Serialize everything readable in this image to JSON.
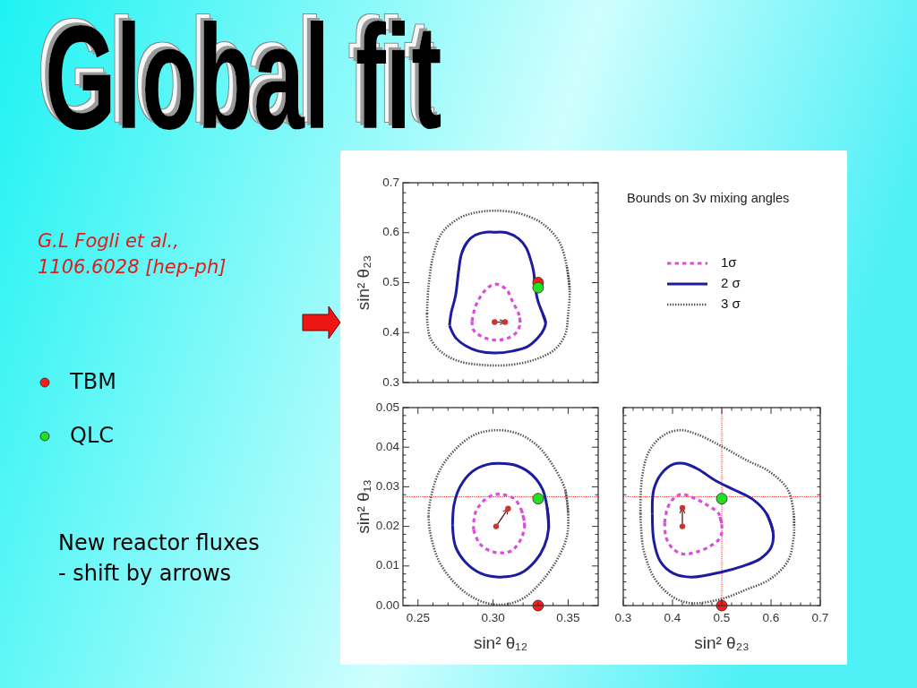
{
  "chart_data": [
    {
      "type": "other",
      "title": "Global fit",
      "annotations": [
        "G.L Fogli et al.,\n1106.6028 [hep-ph]"
      ]
    },
    {
      "type": "line",
      "legend": "right",
      "legend_title": "Bounds on 3ν mixing angles",
      "ylabel": "sin² θ₂₃",
      "tick_labels": "y",
      "xlim": [
        0.24,
        0.37
      ],
      "ylim": [
        0.3,
        0.7
      ],
      "xticks": [
        {
          "value": 0.25,
          "label": null
        },
        {
          "value": 0.26,
          "label": null
        },
        {
          "value": 0.27,
          "label": null
        },
        {
          "value": 0.28,
          "label": null
        },
        {
          "value": 0.29,
          "label": null
        },
        {
          "value": 0.3,
          "label": null
        },
        {
          "value": 0.31,
          "label": null
        },
        {
          "value": 0.32,
          "label": null
        },
        {
          "value": 0.33,
          "label": null
        },
        {
          "value": 0.34,
          "label": null
        },
        {
          "value": 0.35,
          "label": null
        },
        {
          "value": 0.36,
          "label": null
        }
      ],
      "yticks": [
        0.3,
        {
          "value": 0.32,
          "label": null
        },
        {
          "value": 0.34,
          "label": null
        },
        {
          "value": 0.36,
          "label": null
        },
        {
          "value": 0.38,
          "label": null
        },
        0.4,
        {
          "value": 0.42,
          "label": null
        },
        {
          "value": 0.44,
          "label": null
        },
        {
          "value": 0.46,
          "label": null
        },
        {
          "value": 0.48,
          "label": null
        },
        0.5,
        {
          "value": 0.52,
          "label": null
        },
        {
          "value": 0.54,
          "label": null
        },
        {
          "value": 0.56,
          "label": null
        },
        {
          "value": 0.58,
          "label": null
        },
        0.6,
        {
          "value": 0.62,
          "label": null
        },
        {
          "value": 0.64,
          "label": null
        },
        {
          "value": 0.66,
          "label": null
        },
        {
          "value": 0.68,
          "label": null
        },
        0.7
      ],
      "series": [
        {
          "name": "1σ",
          "color": "#d94fd9",
          "line_style": "dashed",
          "x": [
            0.286,
            0.288,
            0.292,
            0.297,
            0.302,
            0.309,
            0.313,
            0.317,
            0.318
          ],
          "values": [
            0.423,
            0.45,
            0.474,
            0.491,
            0.497,
            0.486,
            0.462,
            0.438,
            0.42
          ]
        },
        {
          "color": "#d94fd9",
          "line_style": "dashed",
          "x": [
            0.286,
            0.287,
            0.294,
            0.302,
            0.31,
            0.316,
            0.318,
            0.317
          ],
          "values": [
            0.423,
            0.405,
            0.39,
            0.385,
            0.389,
            0.402,
            0.42,
            0.438
          ]
        },
        {
          "name": "2 σ",
          "color": "#1c1ca0",
          "line_style": "solid",
          "x": [
            0.271,
            0.272,
            0.275,
            0.277,
            0.279,
            0.283,
            0.288,
            0.295,
            0.3,
            0.309,
            0.317,
            0.322,
            0.325,
            0.327,
            0.328,
            0.33,
            0.333,
            0.335
          ],
          "values": [
            0.414,
            0.438,
            0.474,
            0.522,
            0.558,
            0.582,
            0.595,
            0.601,
            0.601,
            0.6,
            0.588,
            0.57,
            0.546,
            0.522,
            0.492,
            0.462,
            0.438,
            0.42
          ]
        },
        {
          "color": "#1c1ca0",
          "line_style": "solid",
          "x": [
            0.271,
            0.275,
            0.282,
            0.29,
            0.301,
            0.313,
            0.323,
            0.33,
            0.334,
            0.335,
            0.333
          ],
          "values": [
            0.414,
            0.39,
            0.373,
            0.363,
            0.359,
            0.363,
            0.372,
            0.39,
            0.408,
            0.42,
            0.438
          ]
        },
        {
          "name": "3 σ",
          "color": "#505050",
          "line_style": "dotted",
          "x": [
            0.256,
            0.257,
            0.26,
            0.266,
            0.278,
            0.288,
            0.3,
            0.317,
            0.333,
            0.344,
            0.349,
            0.351
          ],
          "values": [
            0.438,
            0.492,
            0.552,
            0.6,
            0.63,
            0.64,
            0.644,
            0.639,
            0.618,
            0.582,
            0.534,
            0.486
          ]
        },
        {
          "color": "#505050",
          "line_style": "dotted",
          "x": [
            0.256,
            0.258,
            0.266,
            0.278,
            0.294,
            0.31,
            0.327,
            0.341,
            0.348,
            0.35,
            0.351,
            0.349
          ],
          "values": [
            0.438,
            0.39,
            0.36,
            0.342,
            0.335,
            0.335,
            0.345,
            0.366,
            0.396,
            0.438,
            0.486,
            0.534
          ]
        },
        {
          "type": "line",
          "color": "#cc3333",
          "marker": "circle",
          "x": [
            0.301,
            0.308
          ],
          "values": [
            0.421,
            0.421
          ]
        },
        {
          "type": "scatter",
          "color": "#ff1a1a",
          "marker": "circle",
          "x": [
            0.33
          ],
          "values": [
            0.5
          ]
        },
        {
          "type": "scatter",
          "color": "#22e022",
          "marker": "circle",
          "x": [
            0.33
          ],
          "values": [
            0.49
          ]
        }
      ]
    },
    {
      "type": "line",
      "legend": "left",
      "xlabel": "sin² θ₁₂",
      "ylabel": "sin² θ₁₃",
      "annotations": [
        "New reactor fluxes\n- shift by arrows"
      ],
      "xlim": [
        0.24,
        0.37
      ],
      "ylim": [
        0,
        0.05
      ],
      "xticks": [
        {
          "value": 0.25,
          "label": "0.25"
        },
        {
          "value": 0.26,
          "label": null
        },
        {
          "value": 0.27,
          "label": null
        },
        {
          "value": 0.28,
          "label": null
        },
        {
          "value": 0.29,
          "label": null
        },
        {
          "value": 0.3,
          "label": "0.30"
        },
        {
          "value": 0.31,
          "label": null
        },
        {
          "value": 0.32,
          "label": null
        },
        {
          "value": 0.33,
          "label": null
        },
        {
          "value": 0.34,
          "label": null
        },
        {
          "value": 0.35,
          "label": "0.35"
        },
        {
          "value": 0.36,
          "label": null
        }
      ],
      "yticks": [
        {
          "value": 0,
          "label": "0.00"
        },
        {
          "value": 0.002,
          "label": null
        },
        {
          "value": 0.004,
          "label": null
        },
        {
          "value": 0.006,
          "label": null
        },
        {
          "value": 0.008,
          "label": null
        },
        0.01,
        {
          "value": 0.012,
          "label": null
        },
        {
          "value": 0.014,
          "label": null
        },
        {
          "value": 0.016,
          "label": null
        },
        {
          "value": 0.018,
          "label": null
        },
        0.02,
        {
          "value": 0.022,
          "label": null
        },
        {
          "value": 0.024,
          "label": null
        },
        {
          "value": 0.026,
          "label": null
        },
        {
          "value": 0.028,
          "label": null
        },
        0.03,
        {
          "value": 0.032,
          "label": null
        },
        {
          "value": 0.034,
          "label": null
        },
        {
          "value": 0.036,
          "label": null
        },
        {
          "value": 0.038,
          "label": null
        },
        0.04,
        {
          "value": 0.042,
          "label": null
        },
        {
          "value": 0.044,
          "label": null
        },
        {
          "value": 0.046,
          "label": null
        },
        {
          "value": 0.048,
          "label": null
        },
        0.05
      ],
      "ref_lines": [
        {
          "axis": "y",
          "value": 0.0275,
          "color": "#ff2020",
          "line_style": "dotted"
        }
      ],
      "series": [
        {
          "color": "#d94fd9",
          "line_style": "dashed",
          "x": [
            0.287,
            0.288,
            0.293,
            0.3,
            0.306,
            0.314,
            0.319,
            0.321
          ],
          "values": [
            0.0191,
            0.0232,
            0.0262,
            0.0279,
            0.0281,
            0.027,
            0.024,
            0.0202
          ]
        },
        {
          "color": "#d94fd9",
          "line_style": "dashed",
          "x": [
            0.287,
            0.291,
            0.298,
            0.305,
            0.312,
            0.318,
            0.321,
            0.319
          ],
          "values": [
            0.0191,
            0.0157,
            0.0138,
            0.0133,
            0.0138,
            0.0164,
            0.0202,
            0.024
          ]
        },
        {
          "color": "#1c1ca0",
          "line_style": "solid",
          "x": [
            0.273,
            0.274,
            0.278,
            0.286,
            0.296,
            0.304,
            0.316,
            0.326,
            0.333,
            0.336,
            0.337
          ],
          "values": [
            0.0202,
            0.0255,
            0.03,
            0.0338,
            0.0356,
            0.0359,
            0.0353,
            0.033,
            0.0293,
            0.0247,
            0.0195
          ]
        },
        {
          "color": "#1c1ca0",
          "line_style": "solid",
          "x": [
            0.273,
            0.275,
            0.282,
            0.292,
            0.304,
            0.318,
            0.328,
            0.334,
            0.337,
            0.336
          ],
          "values": [
            0.0202,
            0.0149,
            0.0108,
            0.0081,
            0.0072,
            0.0081,
            0.0112,
            0.0149,
            0.0195,
            0.0247
          ]
        },
        {
          "color": "#505050",
          "line_style": "dotted",
          "x": [
            0.257,
            0.258,
            0.264,
            0.274,
            0.288,
            0.304,
            0.318,
            0.33,
            0.34,
            0.348,
            0.35
          ],
          "values": [
            0.0225,
            0.0262,
            0.0338,
            0.0391,
            0.0432,
            0.0443,
            0.0432,
            0.0402,
            0.0353,
            0.0293,
            0.0232
          ]
        },
        {
          "color": "#505050",
          "line_style": "dotted",
          "x": [
            0.257,
            0.258,
            0.264,
            0.276,
            0.29,
            0.304,
            0.318,
            0.33,
            0.342,
            0.349,
            0.35,
            0.348
          ],
          "values": [
            0.0225,
            0.0187,
            0.0112,
            0.0051,
            0.0014,
            0.0002,
            0.0014,
            0.0051,
            0.0112,
            0.0172,
            0.0232,
            0.0293
          ]
        },
        {
          "type": "line",
          "color": "#cc3333",
          "marker": "circle",
          "x": [
            0.302,
            0.31
          ],
          "values": [
            0.02,
            0.0245
          ]
        },
        {
          "type": "scatter",
          "name": "TBM",
          "color": "#ff1a1a",
          "marker": "circle",
          "x": [
            0.33
          ],
          "values": [
            0
          ]
        },
        {
          "type": "scatter",
          "name": "QLC",
          "color": "#22e022",
          "marker": "circle",
          "x": [
            0.33
          ],
          "values": [
            0.027
          ]
        }
      ]
    },
    {
      "type": "line",
      "xlabel": "sin² θ₂₃",
      "tick_labels": "x",
      "xlim": [
        0.3,
        0.7
      ],
      "ylim": [
        0,
        0.05
      ],
      "xticks": [
        0.3,
        {
          "value": 0.32,
          "label": null
        },
        {
          "value": 0.34,
          "label": null
        },
        {
          "value": 0.36,
          "label": null
        },
        {
          "value": 0.38,
          "label": null
        },
        0.4,
        {
          "value": 0.42,
          "label": null
        },
        {
          "value": 0.44,
          "label": null
        },
        {
          "value": 0.46,
          "label": null
        },
        {
          "value": 0.48,
          "label": null
        },
        0.5,
        {
          "value": 0.52,
          "label": null
        },
        {
          "value": 0.54,
          "label": null
        },
        {
          "value": 0.56,
          "label": null
        },
        {
          "value": 0.58,
          "label": null
        },
        0.6,
        {
          "value": 0.62,
          "label": null
        },
        {
          "value": 0.64,
          "label": null
        },
        {
          "value": 0.66,
          "label": null
        },
        {
          "value": 0.68,
          "label": null
        },
        0.7
      ],
      "yticks": [
        {
          "value": 0,
          "label": null
        },
        {
          "value": 0.002,
          "label": null
        },
        {
          "value": 0.004,
          "label": null
        },
        {
          "value": 0.006,
          "label": null
        },
        {
          "value": 0.008,
          "label": null
        },
        {
          "value": 0.01,
          "label": null
        },
        {
          "value": 0.012,
          "label": null
        },
        {
          "value": 0.014,
          "label": null
        },
        {
          "value": 0.016,
          "label": null
        },
        {
          "value": 0.018,
          "label": null
        },
        {
          "value": 0.02,
          "label": null
        },
        {
          "value": 0.022,
          "label": null
        },
        {
          "value": 0.024,
          "label": null
        },
        {
          "value": 0.026,
          "label": null
        },
        {
          "value": 0.028,
          "label": null
        },
        {
          "value": 0.03,
          "label": null
        },
        {
          "value": 0.032,
          "label": null
        },
        {
          "value": 0.034,
          "label": null
        },
        {
          "value": 0.036,
          "label": null
        },
        {
          "value": 0.038,
          "label": null
        },
        {
          "value": 0.04,
          "label": null
        },
        {
          "value": 0.042,
          "label": null
        },
        {
          "value": 0.044,
          "label": null
        },
        {
          "value": 0.046,
          "label": null
        },
        {
          "value": 0.048,
          "label": null
        },
        {
          "value": 0.05,
          "label": null
        }
      ],
      "ref_lines": [
        {
          "axis": "y",
          "value": 0.0275,
          "color": "#ff2020",
          "line_style": "dotted"
        },
        {
          "axis": "x",
          "value": 0.5,
          "color": "#ff2020",
          "line_style": "dotted"
        }
      ],
      "series": [
        {
          "color": "#d94fd9",
          "line_style": "dashed",
          "x": [
            0.384,
            0.39,
            0.402,
            0.417,
            0.439,
            0.469,
            0.494,
            0.5
          ],
          "values": [
            0.021,
            0.0247,
            0.027,
            0.0281,
            0.0274,
            0.0255,
            0.0232,
            0.0202
          ]
        },
        {
          "color": "#d94fd9",
          "line_style": "dashed",
          "x": [
            0.384,
            0.387,
            0.402,
            0.423,
            0.445,
            0.475,
            0.497,
            0.5,
            0.494
          ],
          "values": [
            0.021,
            0.0172,
            0.0142,
            0.013,
            0.0134,
            0.0149,
            0.0172,
            0.0202,
            0.0232
          ]
        },
        {
          "color": "#1c1ca0",
          "line_style": "solid",
          "x": [
            0.359,
            0.362,
            0.378,
            0.402,
            0.423,
            0.451,
            0.488,
            0.524,
            0.561,
            0.591,
            0.604
          ],
          "values": [
            0.0232,
            0.0293,
            0.0334,
            0.0357,
            0.0359,
            0.0345,
            0.0315,
            0.0293,
            0.027,
            0.0232,
            0.0187
          ]
        },
        {
          "color": "#1c1ca0",
          "line_style": "solid",
          "x": [
            0.359,
            0.362,
            0.375,
            0.402,
            0.439,
            0.5,
            0.543,
            0.579,
            0.601,
            0.604,
            0.591
          ],
          "values": [
            0.0232,
            0.0164,
            0.0112,
            0.0081,
            0.0072,
            0.0085,
            0.01,
            0.0119,
            0.0149,
            0.0187,
            0.0232
          ]
        },
        {
          "color": "#505050",
          "line_style": "dotted",
          "x": [
            0.335,
            0.338,
            0.353,
            0.384,
            0.417,
            0.451,
            0.5,
            0.549,
            0.597,
            0.634,
            0.646,
            0.647
          ],
          "values": [
            0.0232,
            0.0323,
            0.0391,
            0.0432,
            0.0443,
            0.0432,
            0.0402,
            0.0368,
            0.0338,
            0.0293,
            0.0232,
            0.0202
          ]
        },
        {
          "color": "#505050",
          "line_style": "dotted",
          "x": [
            0.335,
            0.341,
            0.365,
            0.402,
            0.439,
            0.5,
            0.549,
            0.597,
            0.634,
            0.646,
            0.647,
            0.646
          ],
          "values": [
            0.0232,
            0.0142,
            0.0066,
            0.0021,
            0.0006,
            0.0017,
            0.004,
            0.0066,
            0.0112,
            0.0172,
            0.0202,
            0.0232
          ]
        },
        {
          "type": "line",
          "color": "#cc3333",
          "marker": "circle",
          "x": [
            0.42,
            0.42
          ],
          "values": [
            0.02,
            0.0247
          ]
        },
        {
          "type": "scatter",
          "color": "#ff1a1a",
          "marker": "circle",
          "x": [
            0.5
          ],
          "values": [
            0
          ]
        },
        {
          "type": "scatter",
          "color": "#22e022",
          "marker": "circle",
          "x": [
            0.5
          ],
          "values": [
            0.027
          ]
        }
      ]
    }
  ]
}
